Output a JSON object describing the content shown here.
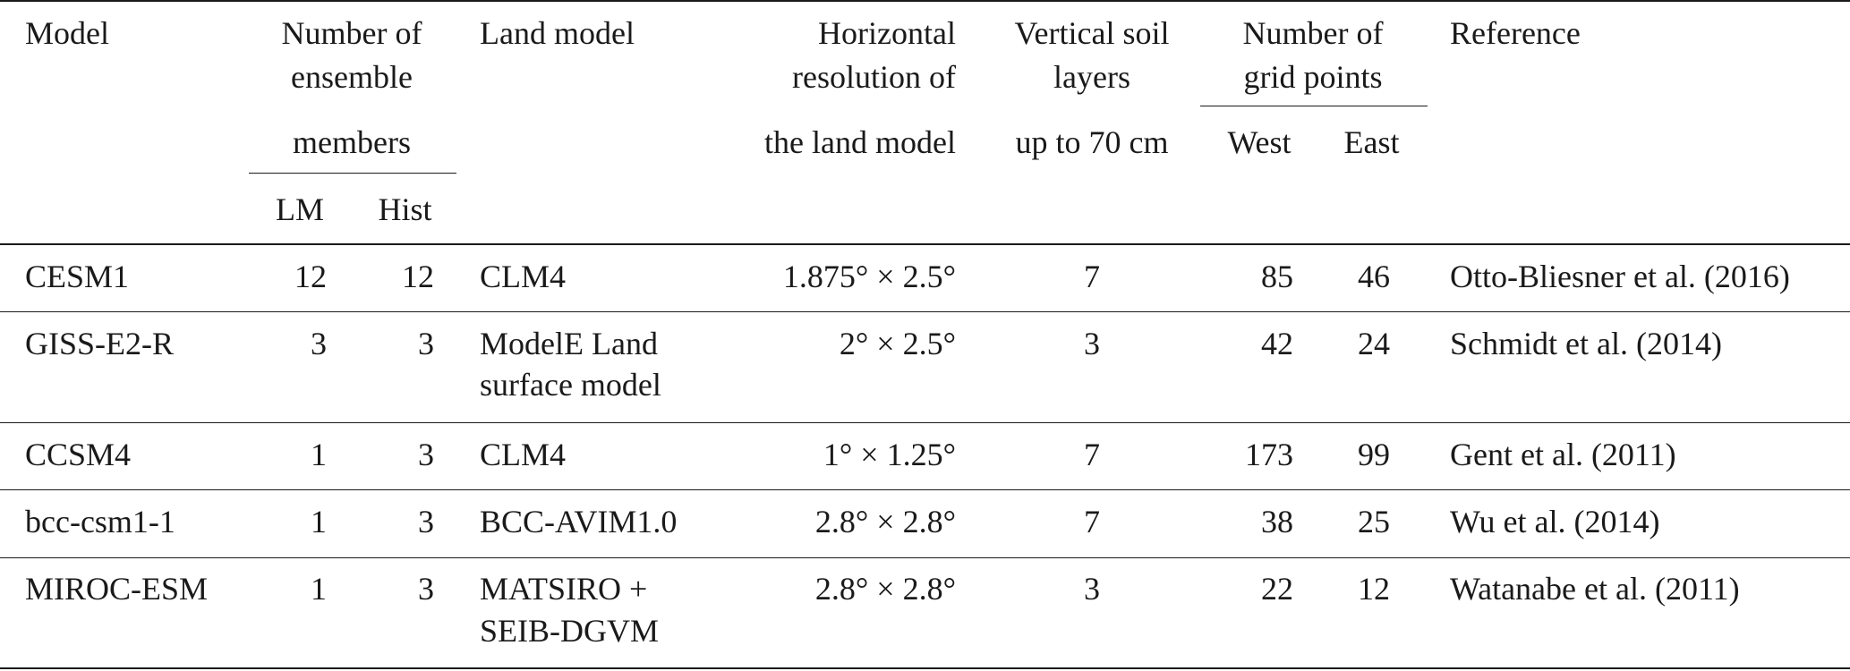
{
  "header": {
    "model": "Model",
    "ensemble": {
      "line1": "Number of",
      "line2": "ensemble",
      "line3": "members",
      "sub": [
        "LM",
        "Hist"
      ]
    },
    "land_model": "Land model",
    "resolution": {
      "line1": "Horizontal",
      "line2": "resolution of",
      "line3": "the land model"
    },
    "soil": {
      "line1": "Vertical soil",
      "line2": "layers",
      "line3": "up to 70 cm"
    },
    "grid": {
      "line1": "Number of",
      "line2": "grid points",
      "sub": [
        "West",
        "East"
      ]
    },
    "reference": "Reference"
  },
  "rows": [
    {
      "model": "CESM1",
      "lm": "12",
      "hist": "12",
      "land_model": [
        "CLM4"
      ],
      "resolution": "1.875° × 2.5°",
      "soil_layers": "7",
      "west": "85",
      "east": "46",
      "reference": "Otto-Bliesner et al. (2016)"
    },
    {
      "model": "GISS-E2-R",
      "lm": "3",
      "hist": "3",
      "land_model": [
        "ModelE Land",
        "surface model"
      ],
      "resolution": "2° × 2.5°",
      "soil_layers": "3",
      "west": "42",
      "east": "24",
      "reference": "Schmidt et al. (2014)"
    },
    {
      "model": "CCSM4",
      "lm": "1",
      "hist": "3",
      "land_model": [
        "CLM4"
      ],
      "resolution": "1° × 1.25°",
      "soil_layers": "7",
      "west": "173",
      "east": "99",
      "reference": "Gent et al. (2011)"
    },
    {
      "model": "bcc-csm1-1",
      "lm": "1",
      "hist": "3",
      "land_model": [
        "BCC-AVIM1.0"
      ],
      "resolution": "2.8° × 2.8°",
      "soil_layers": "7",
      "west": "38",
      "east": "25",
      "reference": "Wu et al. (2014)"
    },
    {
      "model": "MIROC-ESM",
      "lm": "1",
      "hist": "3",
      "land_model": [
        "MATSIRO +",
        "SEIB-DGVM"
      ],
      "resolution": "2.8° × 2.8°",
      "soil_layers": "3",
      "west": "22",
      "east": "12",
      "reference": "Watanabe et al. (2011)"
    }
  ]
}
